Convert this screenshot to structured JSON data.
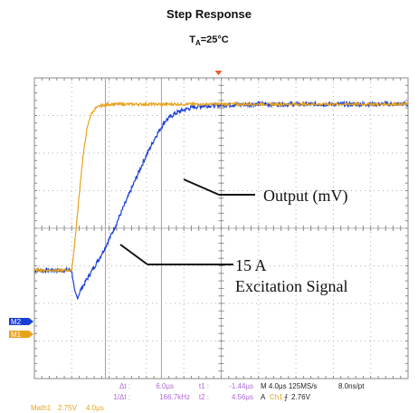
{
  "chart_data": {
    "type": "line",
    "title": "Step Response",
    "subtitle": {
      "prefix": "T",
      "sub": "A",
      "suffix": "=25°C"
    },
    "xlabel": "",
    "ylabel": "",
    "grid": true,
    "x_unit": "µs",
    "xlim": [
      -4,
      36
    ],
    "ylim": [
      -4,
      4
    ],
    "series": [
      {
        "name": "15 A Excitation Signal",
        "color": "#e8a31c",
        "x": [
          -4,
          0,
          0.4,
          0.8,
          1.2,
          1.6,
          2.0,
          2.5,
          3.0,
          3.5,
          4.0,
          5.0,
          6.0,
          8.0,
          10,
          14,
          20,
          28,
          36
        ],
        "y": [
          -1.12,
          -1.12,
          -0.2,
          0.9,
          1.9,
          2.6,
          3.0,
          3.18,
          3.25,
          3.28,
          3.3,
          3.3,
          3.3,
          3.3,
          3.3,
          3.3,
          3.3,
          3.3,
          3.3
        ]
      },
      {
        "name": "Output (mV)",
        "color": "#1a3fd6",
        "x": [
          -4,
          0,
          0.3,
          0.6,
          1.0,
          2.0,
          3.0,
          4.0,
          5.0,
          6.0,
          7.0,
          8.0,
          9.0,
          10,
          11,
          12,
          13,
          14,
          16,
          20,
          28,
          36
        ],
        "y": [
          -1.12,
          -1.12,
          -1.7,
          -1.85,
          -1.62,
          -1.2,
          -0.78,
          -0.3,
          0.25,
          0.82,
          1.4,
          1.95,
          2.45,
          2.85,
          3.05,
          3.15,
          3.22,
          3.26,
          3.28,
          3.3,
          3.3,
          3.3
        ]
      }
    ],
    "channel_markers": [
      {
        "label": "M2",
        "color": "#1a3fd6"
      },
      {
        "label": "M1",
        "color": "#e8a31c"
      }
    ],
    "cursor_lines_x": [
      3.6,
      9.6
    ],
    "annotations": [
      "Output (mV)",
      "15 A",
      "Excitation Signal"
    ],
    "readouts": {
      "delta_t_label": "Δt :",
      "delta_t": "6.0µs",
      "inv_delta_t_label": "1/Δt :",
      "inv_delta_t": "166.7kHz",
      "t1_label": "t1 :",
      "t1": "-1.44µs",
      "t2_label": "t2 :",
      "t2": "4.56µs",
      "timebase": "M 4.0µs 125MS/s",
      "resolution": "8.0ns/pt",
      "trigger_prefix": "A",
      "trigger_channel": "Ch1",
      "trigger_slope": "⨍",
      "trigger_level": "2.76V",
      "math_label": "Math1",
      "math_scale": "2.75V",
      "math_time": "4.0µs"
    },
    "colors": {
      "grid_border": "#8a8a8a",
      "grid_dots": "#b0b0b0",
      "cursor": "#c58bd9",
      "readout_purple": "#b06ad8",
      "readout_orange": "#e8a31c",
      "trigger_marker": "#f05a28"
    }
  }
}
